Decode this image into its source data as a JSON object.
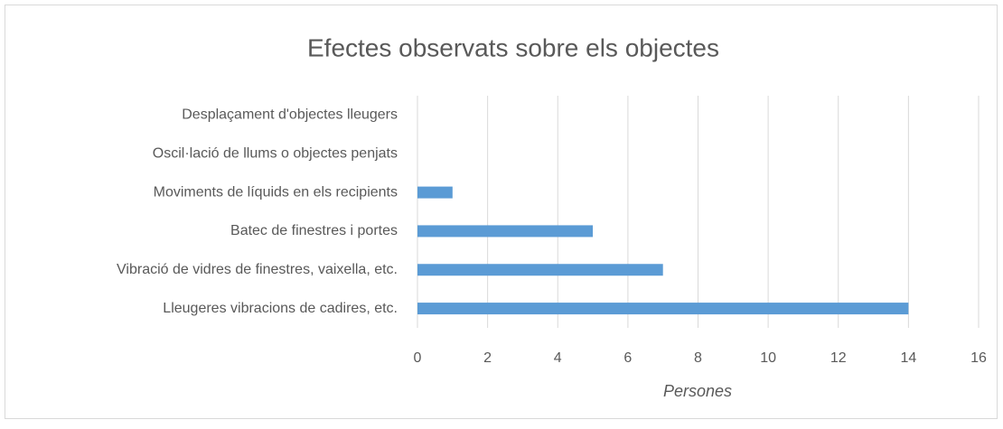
{
  "chart_data": {
    "type": "bar",
    "orientation": "horizontal",
    "title": "Efectes observats sobre els objectes",
    "x_label": "Persones",
    "categories": [
      "Desplaçament d'objectes lleugers",
      "Oscil·lació de llums o objectes penjats",
      "Moviments de líquids en els recipients",
      "Batec de finestres i portes",
      "Vibració de vidres de finestres, vaixella, etc.",
      "Lleugeres vibracions de cadires, etc."
    ],
    "values": [
      0,
      0,
      1,
      5,
      7,
      14
    ],
    "color": "#5b9bd5",
    "xlim": [
      0,
      16
    ],
    "xticks": [
      0,
      2,
      4,
      6,
      8,
      10,
      12,
      14,
      16
    ],
    "grid": true
  }
}
